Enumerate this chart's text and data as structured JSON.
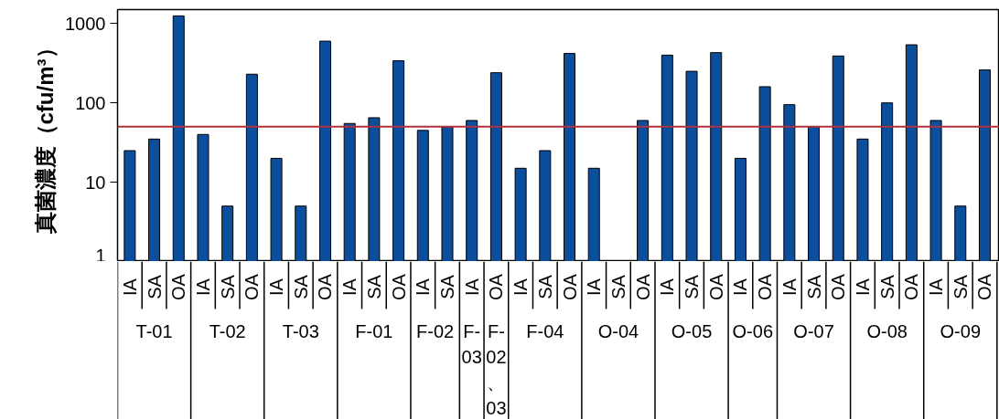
{
  "chart_data": {
    "type": "bar",
    "ylabel": "真菌濃度（cfu/m³）",
    "categories": [
      "T-01",
      "T-02",
      "T-03",
      "F-01",
      "F-02",
      "F-03",
      "F-02、03",
      "F-04",
      "O-04",
      "O-05",
      "O-06",
      "O-07",
      "O-08",
      "O-09"
    ],
    "series": [
      {
        "name": "IA",
        "color": "#0b4f9c",
        "values": [
          25,
          40,
          20,
          55,
          45,
          60,
          null,
          15,
          15,
          400,
          20,
          95,
          35,
          60
        ]
      },
      {
        "name": "SA",
        "color": "#0b4f9c",
        "values": [
          35,
          5,
          5,
          65,
          50,
          null,
          null,
          25,
          1,
          250,
          null,
          50,
          100,
          5
        ]
      },
      {
        "name": "OA",
        "color": "#0b4f9c",
        "values": [
          1250,
          230,
          600,
          340,
          null,
          null,
          240,
          420,
          60,
          430,
          160,
          390,
          540,
          260
        ]
      }
    ],
    "log": true,
    "ylim": [
      1,
      1500
    ],
    "yticks": [
      1,
      10,
      100,
      1000
    ],
    "grid": false,
    "legend": false,
    "ref_lines": [
      {
        "axis": "y",
        "value": 50,
        "color": "#b0303c"
      }
    ]
  }
}
